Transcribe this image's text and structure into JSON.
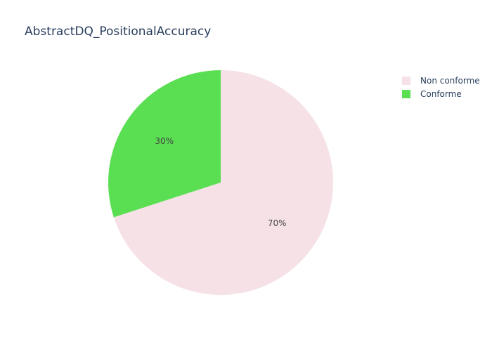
{
  "chart_data": {
    "type": "pie",
    "title": "AbstractDQ_PositionalAccuracy",
    "slices": [
      {
        "label": "Non conforme",
        "value": 70,
        "display": "70%",
        "color": "#f5e1e6"
      },
      {
        "label": "Conforme",
        "value": 30,
        "display": "30%",
        "color": "#5adf52"
      }
    ],
    "legend_placement": "top-right",
    "direction": "clockwise",
    "start_angle_deg": 90
  }
}
